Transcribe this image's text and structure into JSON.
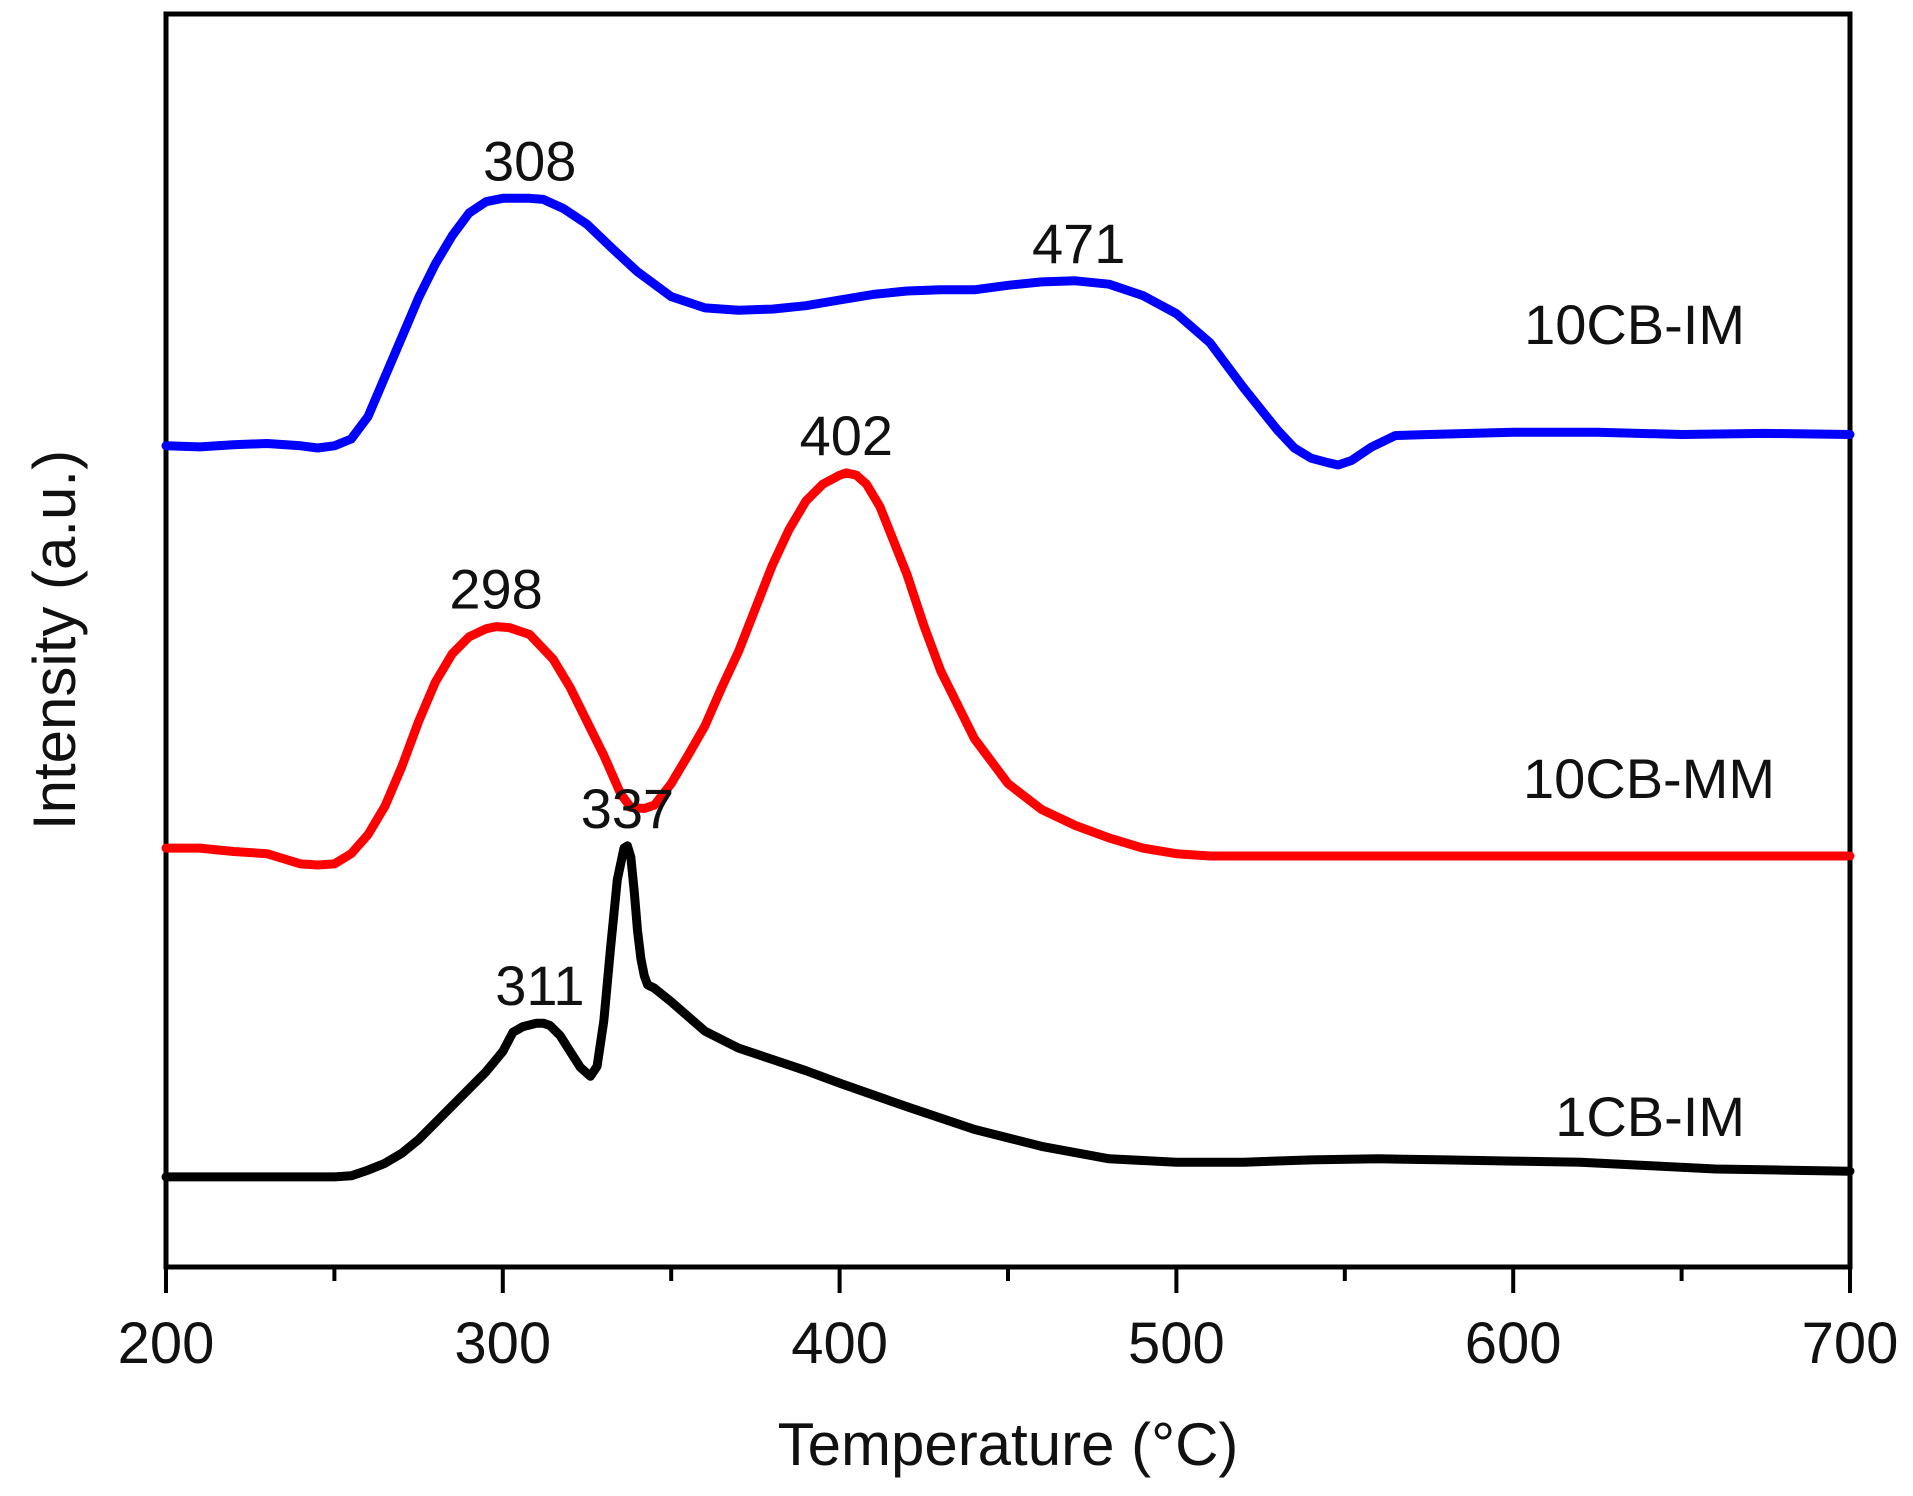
{
  "chart_data": {
    "type": "line",
    "title": "",
    "xlabel": "Temperature (°C)",
    "ylabel": "Intensity (a.u.)",
    "xlim": [
      200,
      700
    ],
    "ylim": [
      0,
      100
    ],
    "xticks": [
      200,
      300,
      400,
      500,
      600,
      700
    ],
    "xtick_labels": [
      "200",
      "300",
      "400",
      "500",
      "600",
      "700"
    ],
    "xminor_step": 50,
    "yticks_shown": false,
    "grid": false,
    "legend": "none (series labeled inline at right)",
    "series": [
      {
        "name": "10CB-IM",
        "color": "#0000ff",
        "x": [
          200,
          210,
          220,
          230,
          240,
          245,
          250,
          255,
          260,
          265,
          270,
          275,
          280,
          285,
          290,
          295,
          300,
          305,
          308,
          312,
          318,
          325,
          332,
          340,
          350,
          360,
          370,
          380,
          390,
          400,
          410,
          420,
          430,
          440,
          450,
          460,
          470,
          480,
          490,
          500,
          510,
          520,
          530,
          535,
          540,
          545,
          548,
          552,
          558,
          565,
          575,
          600,
          625,
          650,
          675,
          700
        ],
        "y": [
          69.4,
          69.3,
          69.5,
          69.6,
          69.4,
          69.2,
          69.4,
          70.0,
          72.0,
          75.5,
          79.0,
          82.5,
          85.5,
          88.0,
          90.0,
          91.0,
          91.3,
          91.3,
          91.3,
          91.2,
          90.4,
          89.0,
          87.0,
          84.8,
          82.6,
          81.6,
          81.4,
          81.5,
          81.8,
          82.3,
          82.8,
          83.1,
          83.2,
          83.2,
          83.6,
          83.9,
          84.0,
          83.7,
          82.7,
          81.1,
          78.5,
          74.5,
          70.8,
          69.2,
          68.3,
          67.9,
          67.7,
          68.1,
          69.3,
          70.3,
          70.4,
          70.6,
          70.6,
          70.4,
          70.5,
          70.4
        ]
      },
      {
        "name": "10CB-MM",
        "color": "#ff0000",
        "x": [
          200,
          210,
          220,
          230,
          240,
          245,
          250,
          255,
          260,
          265,
          270,
          275,
          280,
          285,
          290,
          295,
          298,
          302,
          308,
          315,
          320,
          325,
          330,
          335,
          338,
          342,
          345,
          350,
          355,
          360,
          365,
          370,
          375,
          380,
          385,
          390,
          395,
          400,
          402,
          405,
          408,
          412,
          416,
          420,
          425,
          430,
          440,
          450,
          460,
          470,
          480,
          490,
          500,
          510,
          600,
          700
        ],
        "y": [
          33.8,
          33.8,
          33.5,
          33.3,
          32.4,
          32.3,
          32.4,
          33.3,
          35.0,
          37.5,
          41.0,
          45.0,
          48.5,
          51.0,
          52.5,
          53.2,
          53.4,
          53.3,
          52.7,
          50.5,
          48.0,
          45.0,
          42.0,
          38.6,
          37.4,
          37.3,
          37.6,
          39.5,
          42.0,
          44.6,
          48.0,
          51.2,
          55.0,
          58.8,
          62.0,
          64.5,
          66.0,
          66.8,
          67.0,
          66.8,
          66.0,
          64.0,
          61.0,
          58.0,
          53.5,
          49.5,
          43.5,
          39.5,
          37.2,
          35.8,
          34.7,
          33.8,
          33.3,
          33.1,
          33.1,
          33.1
        ]
      },
      {
        "name": "1CB-IM",
        "color": "#000000",
        "x": [
          200,
          220,
          240,
          250,
          255,
          260,
          265,
          270,
          275,
          280,
          285,
          290,
          295,
          300,
          303,
          306,
          310,
          312,
          314,
          317,
          320,
          323,
          326,
          328,
          330,
          332,
          334,
          336,
          337,
          338,
          339,
          340,
          341,
          342,
          343,
          345,
          350,
          355,
          360,
          370,
          380,
          390,
          400,
          420,
          440,
          460,
          480,
          500,
          520,
          540,
          560,
          580,
          600,
          620,
          640,
          660,
          680,
          700
        ],
        "y": [
          4.7,
          4.7,
          4.7,
          4.7,
          4.8,
          5.3,
          5.9,
          6.8,
          8.0,
          9.5,
          11.0,
          12.5,
          14.0,
          15.8,
          17.5,
          18.0,
          18.3,
          18.3,
          18.1,
          17.2,
          15.8,
          14.4,
          13.6,
          14.5,
          18.5,
          25.0,
          31.0,
          33.8,
          34.0,
          33.0,
          30.0,
          26.5,
          24.0,
          22.5,
          21.7,
          21.4,
          20.2,
          18.9,
          17.6,
          16.1,
          15.1,
          14.1,
          13.0,
          10.9,
          8.9,
          7.4,
          6.3,
          6.0,
          6.0,
          6.2,
          6.3,
          6.2,
          6.1,
          6.0,
          5.7,
          5.4,
          5.3,
          5.2
        ]
      }
    ],
    "peak_annotations": [
      {
        "series": "10CB-IM",
        "label": "308",
        "x": 308,
        "y": 91.3
      },
      {
        "series": "10CB-IM",
        "label": "471",
        "x": 471,
        "y": 84.0
      },
      {
        "series": "10CB-MM",
        "label": "298",
        "x": 298,
        "y": 53.4
      },
      {
        "series": "10CB-MM",
        "label": "402",
        "x": 402,
        "y": 67.0
      },
      {
        "series": "1CB-IM",
        "label": "311",
        "x": 311,
        "y": 18.3
      },
      {
        "series": "1CB-IM",
        "label": "337",
        "x": 337,
        "y": 34.0
      }
    ]
  }
}
